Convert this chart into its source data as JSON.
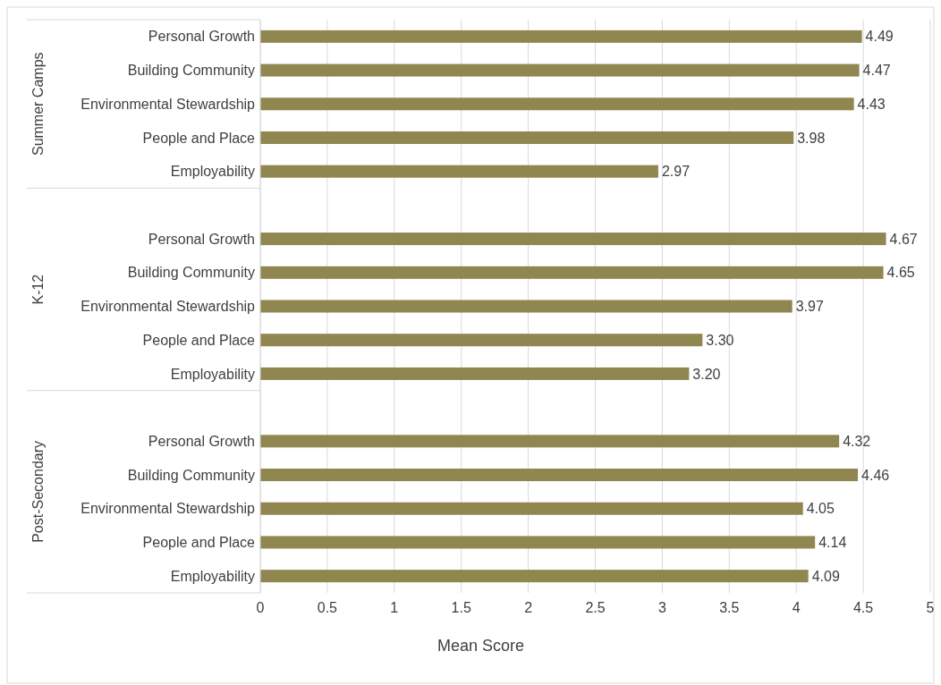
{
  "chart_data": {
    "type": "bar",
    "orientation": "horizontal",
    "categories": [
      "Personal Growth",
      "Building Community",
      "Environmental Stewardship",
      "People and Place",
      "Employability",
      null,
      "Personal Growth",
      "Building Community",
      "Environmental Stewardship",
      "People and Place",
      "Employability",
      null,
      "Personal Growth",
      "Building Community",
      "Environmental Stewardship",
      "People and Place",
      "Employability"
    ],
    "values": [
      4.49,
      4.47,
      4.43,
      3.98,
      2.97,
      null,
      4.67,
      4.65,
      3.97,
      3.3,
      3.2,
      null,
      4.32,
      4.46,
      4.05,
      4.14,
      4.09
    ],
    "value_labels": [
      "4.49",
      "4.47",
      "4.43",
      "3.98",
      "2.97",
      null,
      "4.67",
      "4.65",
      "3.97",
      "3.30",
      "3.20",
      null,
      "4.32",
      "4.46",
      "4.05",
      "4.14",
      "4.09"
    ],
    "color": "#8f8650",
    "xlim": [
      0,
      5
    ],
    "xticks": [
      0,
      0.5,
      1,
      1.5,
      2,
      2.5,
      3,
      3.5,
      4,
      4.5,
      5
    ],
    "xlabel": "Mean Score",
    "grid": "x",
    "annotations": [
      "Summer Camps",
      "K-12",
      "Post-Secondary"
    ]
  }
}
